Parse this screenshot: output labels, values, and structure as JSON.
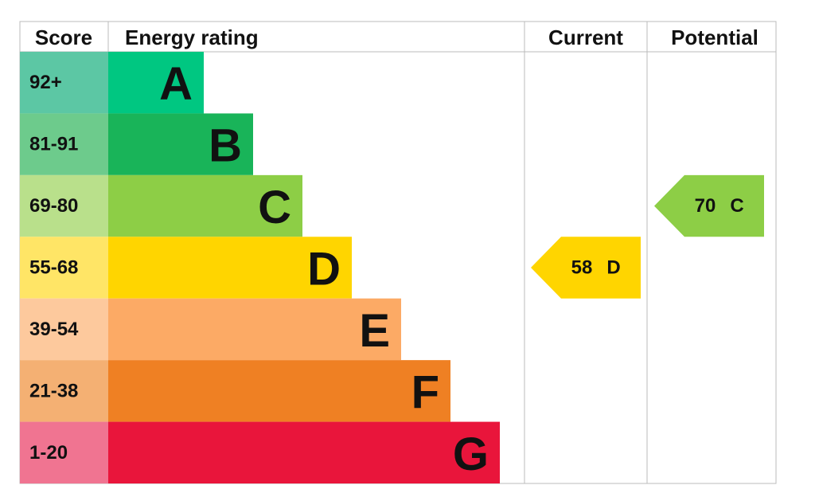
{
  "header": {
    "score": "Score",
    "rating": "Energy rating",
    "current": "Current",
    "potential": "Potential"
  },
  "bands": [
    {
      "score": "92+",
      "letter": "A",
      "color": "#00c781",
      "score_color": "#5cc7a4"
    },
    {
      "score": "81-91",
      "letter": "B",
      "color": "#19b459",
      "score_color": "#6dcb8c"
    },
    {
      "score": "69-80",
      "letter": "C",
      "color": "#8dce46",
      "score_color": "#b9e08b"
    },
    {
      "score": "55-68",
      "letter": "D",
      "color": "#ffd500",
      "score_color": "#ffe566"
    },
    {
      "score": "39-54",
      "letter": "E",
      "color": "#fcaa65",
      "score_color": "#fdc99d"
    },
    {
      "score": "21-38",
      "letter": "F",
      "color": "#ef8023",
      "score_color": "#f4b073"
    },
    {
      "score": "1-20",
      "letter": "G",
      "color": "#e9153b",
      "score_color": "#f07491"
    }
  ],
  "current": {
    "value": 58,
    "letter": "D"
  },
  "potential": {
    "value": 70,
    "letter": "C"
  }
}
